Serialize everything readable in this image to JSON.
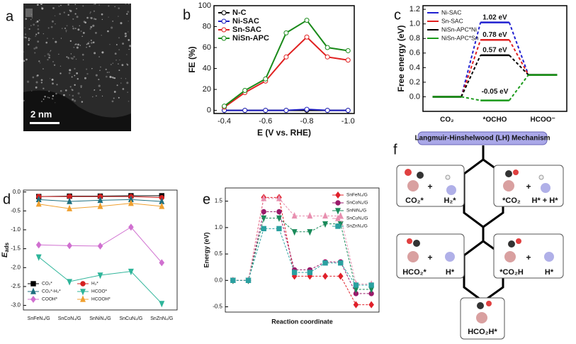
{
  "panel_labels": [
    "a",
    "b",
    "c",
    "d",
    "e",
    "f"
  ],
  "image_a": {
    "scale_bar": "2 nm"
  },
  "chart_data": [
    {
      "type": "line",
      "xlabel": "E (V vs. RHE)",
      "ylabel": "FE (%)",
      "x": [
        -0.4,
        -0.5,
        -0.6,
        -0.7,
        -0.8,
        -0.9,
        -1.0
      ],
      "xlim": [
        -0.35,
        -1.03
      ],
      "xticks": [
        -0.4,
        -0.6,
        -0.8,
        {
          "value": -1.0,
          "label": "-1.0"
        }
      ],
      "ylim": [
        -3,
        100
      ],
      "yticks": [
        0,
        20,
        40,
        60,
        80,
        100
      ],
      "legend": "upper left",
      "series": [
        {
          "name": "N-C",
          "color": "#000000",
          "marker": "open-circle",
          "values": [
            0,
            0,
            0,
            0,
            0,
            0,
            0
          ]
        },
        {
          "name": "Ni-SAC",
          "color": "#1f1fbf",
          "marker": "open-circle",
          "values": [
            0,
            0,
            0,
            0,
            1,
            0,
            0
          ]
        },
        {
          "name": "Sn-SAC",
          "color": "#e02020",
          "marker": "open-circle",
          "values": [
            3,
            17,
            28,
            51,
            70,
            51,
            48
          ]
        },
        {
          "name": "NiSn-APC",
          "color": "#1a8a1a",
          "marker": "open-circle",
          "values": [
            4,
            19,
            30,
            74,
            86,
            60,
            57
          ]
        }
      ]
    },
    {
      "type": "energy_diagram",
      "ylabel": "Free energy (eV)",
      "categories": [
        "CO₂",
        "*OCHO",
        "HCOO⁻"
      ],
      "ylim": [
        -0.2,
        1.25
      ],
      "yticks": [
        {
          "value": 0,
          "label": "0.0"
        },
        0.2,
        0.4,
        0.6,
        0.8,
        {
          "value": 1.0,
          "label": "1.0"
        },
        1.2
      ],
      "legend": "upper left",
      "series": [
        {
          "name": "Ni-SAC",
          "color": "#2020d0",
          "values": [
            0,
            1.02,
            0.3
          ],
          "value_labels": [
            null,
            "1.02 eV",
            null
          ]
        },
        {
          "name": "Sn-SAC",
          "color": "#e02020",
          "values": [
            0,
            0.78,
            0.3
          ],
          "value_labels": [
            null,
            "0.78 eV",
            null
          ]
        },
        {
          "name": "NiSn-APC*Ni",
          "color": "#000000",
          "values": [
            0,
            0.57,
            0.3
          ],
          "value_labels": [
            null,
            "0.57 eV",
            null
          ]
        },
        {
          "name": "NiSn-APC*Sn",
          "color": "#1a9a1a",
          "values": [
            0,
            -0.05,
            0.3
          ],
          "value_labels": [
            null,
            "-0.05 eV",
            null
          ]
        }
      ]
    },
    {
      "type": "line",
      "ylabel": {
        "main": "E",
        "sub": "ads"
      },
      "categories": [
        "SnFeN₄/G",
        "SnCoN₄/G",
        "SnNiN₄/G",
        "SnCuN₄/G",
        "SnZnN₄/G"
      ],
      "ylim": [
        -3.12,
        0.05
      ],
      "yticks": [
        {
          "value": 0,
          "label": "0.0"
        },
        -0.5,
        {
          "value": -1.0,
          "label": "-1.0"
        },
        -1.5,
        {
          "value": -2.0,
          "label": "-2.0"
        },
        -2.5,
        {
          "value": -3.0,
          "label": "-3.0"
        }
      ],
      "legend": "lower left",
      "legend_columns": 2,
      "series": [
        {
          "name": "CO₂*",
          "color": "#000000",
          "marker": "square",
          "values": [
            -0.12,
            -0.11,
            -0.11,
            -0.1,
            -0.1
          ]
        },
        {
          "name": "H₂*",
          "color": "#d42020",
          "marker": "circle",
          "values": [
            -0.12,
            -0.12,
            -0.12,
            -0.12,
            -0.15
          ]
        },
        {
          "name": "CO₂*-H₂*",
          "color": "#1f6f7f",
          "marker": "triangle",
          "values": [
            -0.2,
            -0.25,
            -0.22,
            -0.2,
            -0.25
          ]
        },
        {
          "name": "HCOO*",
          "color": "#2fb59a",
          "marker": "triangle-down",
          "values": [
            -1.72,
            -2.37,
            -2.2,
            -2.1,
            -2.95
          ]
        },
        {
          "name": "COOH*",
          "color": "#d070d0",
          "marker": "diamond",
          "values": [
            -1.4,
            -1.42,
            -1.43,
            -0.93,
            -1.87
          ]
        },
        {
          "name": "HCOOH*",
          "color": "#f0a030",
          "marker": "triangle",
          "values": [
            -0.32,
            -0.44,
            -0.38,
            -0.3,
            -0.38
          ]
        }
      ]
    },
    {
      "type": "line",
      "line_style": "dashed",
      "xlabel": "Reaction coordinate",
      "ylabel": "Energy (eV)",
      "categories": [
        null,
        null,
        null,
        null,
        null,
        null,
        null,
        null,
        null,
        null
      ],
      "ylim": [
        -0.6,
        1.75
      ],
      "yticks": [
        -0.5,
        {
          "value": 0,
          "label": "0.0"
        },
        0.5,
        {
          "value": 1.0,
          "label": "1.0"
        },
        1.5
      ],
      "legend": "upper right",
      "series": [
        {
          "name": "SnFeN₄/G",
          "color": "#e0202a",
          "marker": "diamond",
          "values": [
            0,
            0,
            1.57,
            1.57,
            0.08,
            0.08,
            0.08,
            0.08,
            -0.46,
            -0.46
          ]
        },
        {
          "name": "SnCoN₄/G",
          "color": "#9a1a6a",
          "marker": "circle",
          "values": [
            0,
            0,
            1.3,
            1.3,
            0.2,
            0.2,
            0.35,
            0.35,
            -0.25,
            -0.25
          ]
        },
        {
          "name": "SnNiN₄/G",
          "color": "#1a8a5a",
          "marker": "triangle-down",
          "values": [
            0,
            0,
            1.18,
            1.18,
            0.92,
            0.92,
            1.07,
            1.07,
            -0.17,
            -0.17
          ]
        },
        {
          "name": "SnCuN₄/G",
          "color": "#e890b0",
          "marker": "triangle",
          "values": [
            0,
            0,
            1.55,
            1.55,
            1.22,
            1.22,
            1.22,
            1.22,
            -0.07,
            -0.07
          ]
        },
        {
          "name": "SnZnN₄/G",
          "color": "#2aa0a0",
          "marker": "square",
          "values": [
            0,
            0,
            0.98,
            0.98,
            0.15,
            0.15,
            0.33,
            0.33,
            -0.09,
            -0.09
          ]
        }
      ]
    }
  ],
  "mechanism": {
    "title": "Langmuir-Hinshelwood (LH) Mechanism",
    "plus": "+",
    "steps": [
      {
        "left": "CO₂*",
        "right": "H₂*"
      },
      {
        "left": "*CO₂",
        "right": "H* + H*"
      },
      {
        "left": "HCO₂*",
        "right": "H*"
      },
      {
        "left": "*CO₂H",
        "right": "H*"
      }
    ],
    "product": "HCO₂H*"
  }
}
